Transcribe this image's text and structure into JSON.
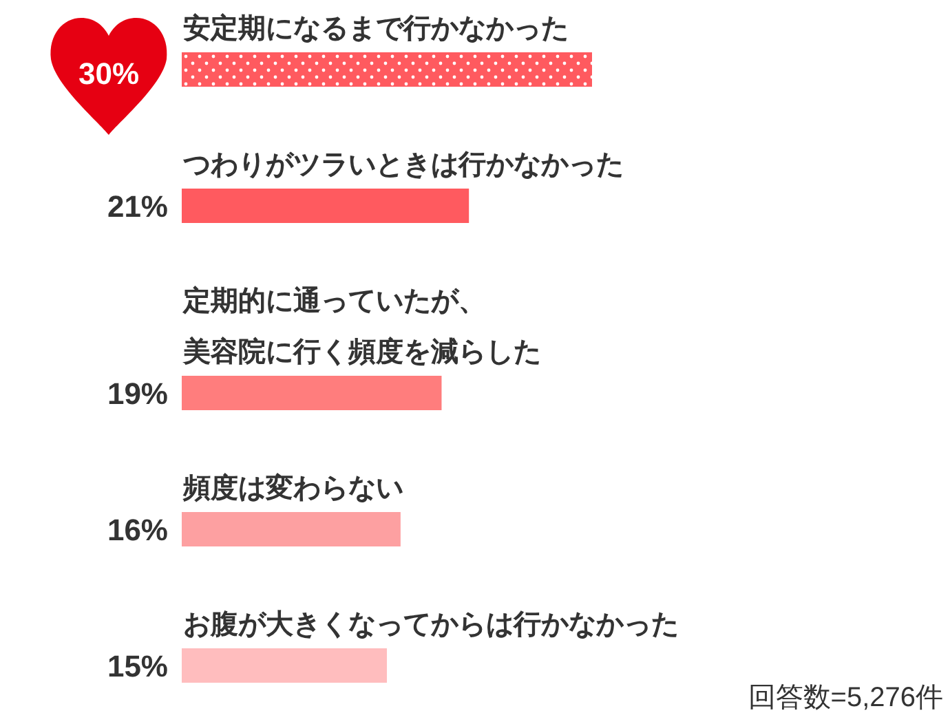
{
  "chart_data": {
    "type": "bar",
    "orientation": "horizontal",
    "categories": [
      "安定期になるまで行かなかった",
      "つわりがツラいときは行かなかった",
      "定期的に通っていたが、美容院に行く頻度を減らした",
      "頻度は変わらない",
      "お腹が大きくなってからは行かなかった"
    ],
    "values": [
      30,
      21,
      19,
      16,
      15
    ],
    "colors": [
      "#ff5a5f",
      "#ff5a5f",
      "#ff7d7d",
      "#fda0a1",
      "#ffbdbe"
    ],
    "value_labels": [
      "30%",
      "21%",
      "19%",
      "16%",
      "15%"
    ],
    "xlim": [
      0,
      30
    ],
    "annotations": [
      "回答数=5,276件"
    ]
  }
}
